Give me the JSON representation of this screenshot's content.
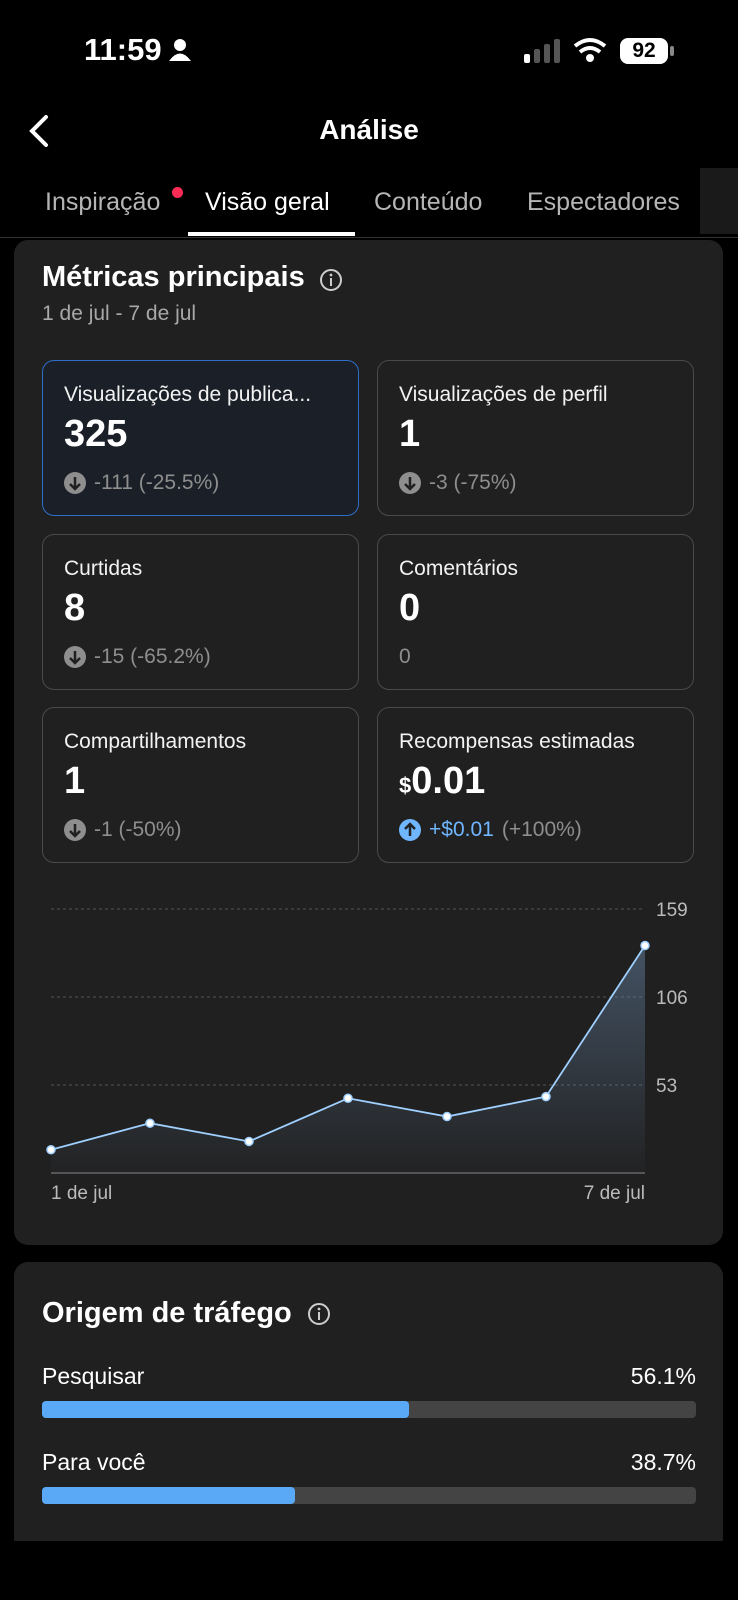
{
  "status": {
    "time": "11:59",
    "battery": "92"
  },
  "header": {
    "title": "Análise"
  },
  "tabs": {
    "items": [
      "Inspiração",
      "Visão geral",
      "Conteúdo",
      "Espectadores"
    ],
    "active": 1
  },
  "metrics": {
    "title": "Métricas principais",
    "date_range": "1 de jul - 7 de jul",
    "cards": [
      {
        "label": "Visualizações de publica...",
        "value": "325",
        "change": "-111 (-25.5%)",
        "direction": "down",
        "selected": true
      },
      {
        "label": "Visualizações de perfil",
        "value": "1",
        "change": "-3 (-75%)",
        "direction": "down"
      },
      {
        "label": "Curtidas",
        "value": "8",
        "change": "-15 (-65.2%)",
        "direction": "down"
      },
      {
        "label": "Comentários",
        "value": "0",
        "change": "0",
        "direction": "none"
      },
      {
        "label": "Compartilhamentos",
        "value": "1",
        "change": "-1 (-50%)",
        "direction": "down"
      },
      {
        "label": "Recompensas estimadas",
        "prefix": "$",
        "value": "0.01",
        "change": "+$0.01",
        "change_pct": "(+100%)",
        "direction": "up"
      }
    ]
  },
  "chart": {
    "type": "line",
    "categories": [
      "1 de jul",
      null,
      null,
      null,
      null,
      null,
      "7 de jul"
    ],
    "values": [
      14,
      30,
      19,
      45,
      34,
      46,
      137
    ],
    "color": "#9fd0ff",
    "ylim": [
      0,
      159
    ],
    "yticks": [
      53,
      106,
      159
    ],
    "grid": true
  },
  "traffic": {
    "title": "Origem de tráfego",
    "items": [
      {
        "label": "Pesquisar",
        "value": 56.1,
        "value_label": "56.1%"
      },
      {
        "label": "Para você",
        "value": 38.7,
        "value_label": "38.7%"
      }
    ],
    "color": "#5aa9f6",
    "max": 100
  }
}
